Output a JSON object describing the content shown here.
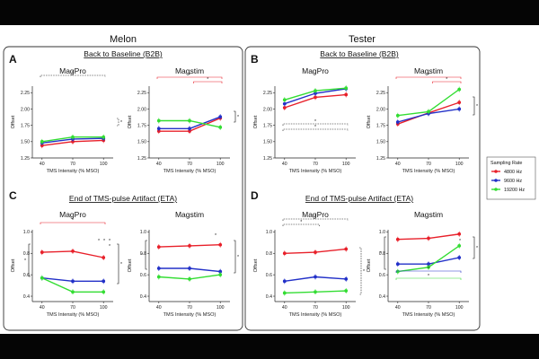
{
  "group_titles": {
    "left": "Melon",
    "right": "Tester"
  },
  "panel_letters": {
    "A": "A",
    "B": "B",
    "C": "C",
    "D": "D"
  },
  "section_titles": {
    "A": "Back to Baseline (B2B)",
    "B": "Back to Baseline (B2B)",
    "C": "End of TMS-pulse Artifact (ETA)",
    "D": "End of TMS-pulse Artifact (ETA)"
  },
  "legend": {
    "title": "Sampling Rate",
    "items": [
      {
        "label": "4800 Hz",
        "color": "#e8202a"
      },
      {
        "label": "9600 Hz",
        "color": "#2230c8"
      },
      {
        "label": "19200 Hz",
        "color": "#33dd33"
      }
    ]
  },
  "chart_data": [
    {
      "id": "A-MagPro",
      "type": "line",
      "title": "MagPro",
      "xlabel": "TMS Intensity (% MSO)",
      "ylabel": "Offset",
      "x": [
        40,
        70,
        100
      ],
      "xticks": [
        "40",
        "70",
        "100"
      ],
      "ylim": [
        1.25,
        2.35
      ],
      "yticks": [
        "1.25",
        "1.50",
        "1.75",
        "2.00",
        "2.25"
      ],
      "series": [
        {
          "name": "4800 Hz",
          "color": "#e8202a",
          "values": [
            1.44,
            1.5,
            1.52
          ]
        },
        {
          "name": "9600 Hz",
          "color": "#2230c8",
          "values": [
            1.48,
            1.54,
            1.55
          ]
        },
        {
          "name": "19200 Hz",
          "color": "#33dd33",
          "values": [
            1.5,
            1.57,
            1.57
          ]
        }
      ],
      "significance": [
        "*",
        "*"
      ]
    },
    {
      "id": "A-Magstim",
      "type": "line",
      "title": "Magstim",
      "xlabel": "TMS Intensity (% MSO)",
      "ylabel": "Offset",
      "x": [
        40,
        70,
        100
      ],
      "xticks": [
        "40",
        "70",
        "100"
      ],
      "ylim": [
        1.25,
        2.35
      ],
      "yticks": [
        "1.25",
        "1.50",
        "1.75",
        "2.00",
        "2.25"
      ],
      "series": [
        {
          "name": "4800 Hz",
          "color": "#e8202a",
          "values": [
            1.66,
            1.66,
            1.86
          ]
        },
        {
          "name": "9600 Hz",
          "color": "#2230c8",
          "values": [
            1.7,
            1.7,
            1.88
          ]
        },
        {
          "name": "19200 Hz",
          "color": "#33dd33",
          "values": [
            1.82,
            1.82,
            1.72
          ]
        }
      ],
      "significance": [
        "*",
        "*",
        "*"
      ]
    },
    {
      "id": "B-MagPro",
      "type": "line",
      "title": "MagPro",
      "xlabel": "TMS Intensity (% MSO)",
      "ylabel": "Offset",
      "x": [
        40,
        70,
        100
      ],
      "xticks": [
        "40",
        "70",
        "100"
      ],
      "ylim": [
        1.25,
        2.35
      ],
      "yticks": [
        "1.25",
        "1.50",
        "1.75",
        "2.00",
        "2.25"
      ],
      "series": [
        {
          "name": "4800 Hz",
          "color": "#e8202a",
          "values": [
            2.02,
            2.18,
            2.22
          ]
        },
        {
          "name": "9600 Hz",
          "color": "#2230c8",
          "values": [
            2.08,
            2.24,
            2.31
          ]
        },
        {
          "name": "19200 Hz",
          "color": "#33dd33",
          "values": [
            2.14,
            2.28,
            2.32
          ]
        }
      ],
      "significance": [
        "*",
        "*"
      ]
    },
    {
      "id": "B-Magstim",
      "type": "line",
      "title": "Magstim",
      "xlabel": "TMS Intensity (% MSO)",
      "ylabel": "Offset",
      "x": [
        40,
        70,
        100
      ],
      "xticks": [
        "40",
        "70",
        "100"
      ],
      "ylim": [
        1.25,
        2.35
      ],
      "yticks": [
        "1.25",
        "1.50",
        "1.75",
        "2.00",
        "2.25"
      ],
      "series": [
        {
          "name": "4800 Hz",
          "color": "#e8202a",
          "values": [
            1.77,
            1.94,
            2.1
          ]
        },
        {
          "name": "9600 Hz",
          "color": "#2230c8",
          "values": [
            1.8,
            1.93,
            2.0
          ]
        },
        {
          "name": "19200 Hz",
          "color": "#33dd33",
          "values": [
            1.9,
            1.96,
            2.3
          ]
        }
      ],
      "significance": [
        "*",
        "*",
        "*"
      ]
    },
    {
      "id": "C-MagPro",
      "type": "line",
      "title": "MagPro",
      "xlabel": "TMS Intensity (% MSO)",
      "ylabel": "Offset",
      "x": [
        40,
        70,
        100
      ],
      "xticks": [
        "40",
        "70",
        "100"
      ],
      "ylim": [
        0.35,
        1.02
      ],
      "yticks": [
        "0.4",
        "0.6",
        "0.8",
        "1.0"
      ],
      "series": [
        {
          "name": "4800 Hz",
          "color": "#e8202a",
          "values": [
            0.81,
            0.82,
            0.76
          ]
        },
        {
          "name": "9600 Hz",
          "color": "#2230c8",
          "values": [
            0.57,
            0.54,
            0.54
          ]
        },
        {
          "name": "19200 Hz",
          "color": "#33dd33",
          "values": [
            0.57,
            0.44,
            0.44
          ]
        }
      ],
      "significance": [
        "*",
        "*",
        "*",
        "*",
        "*",
        "*",
        "*"
      ]
    },
    {
      "id": "C-Magstim",
      "type": "line",
      "title": "Magstim",
      "xlabel": "TMS Intensity (% MSO)",
      "ylabel": "Offset",
      "x": [
        40,
        70,
        100
      ],
      "xticks": [
        "40",
        "70",
        "100"
      ],
      "ylim": [
        0.35,
        1.02
      ],
      "yticks": [
        "0.4",
        "0.6",
        "0.8",
        "1.0"
      ],
      "series": [
        {
          "name": "4800 Hz",
          "color": "#e8202a",
          "values": [
            0.86,
            0.87,
            0.88
          ]
        },
        {
          "name": "9600 Hz",
          "color": "#2230c8",
          "values": [
            0.66,
            0.66,
            0.63
          ]
        },
        {
          "name": "19200 Hz",
          "color": "#33dd33",
          "values": [
            0.58,
            0.56,
            0.6
          ]
        }
      ],
      "significance": [
        "*",
        "*",
        "*"
      ]
    },
    {
      "id": "D-MagPro",
      "type": "line",
      "title": "MagPro",
      "xlabel": "TMS Intensity (% MSO)",
      "ylabel": "Offset",
      "x": [
        40,
        70,
        100
      ],
      "xticks": [
        "40",
        "70",
        "100"
      ],
      "ylim": [
        0.35,
        1.02
      ],
      "yticks": [
        "0.4",
        "0.6",
        "0.8",
        "1.0"
      ],
      "series": [
        {
          "name": "4800 Hz",
          "color": "#e8202a",
          "values": [
            0.8,
            0.81,
            0.84
          ]
        },
        {
          "name": "9600 Hz",
          "color": "#2230c8",
          "values": [
            0.54,
            0.58,
            0.56
          ]
        },
        {
          "name": "19200 Hz",
          "color": "#33dd33",
          "values": [
            0.43,
            0.44,
            0.45
          ]
        }
      ],
      "significance": [
        "*",
        "*",
        "*"
      ]
    },
    {
      "id": "D-Magstim",
      "type": "line",
      "title": "Magstim",
      "xlabel": "TMS Intensity (% MSO)",
      "ylabel": "Offset",
      "x": [
        40,
        70,
        100
      ],
      "xticks": [
        "40",
        "70",
        "100"
      ],
      "ylim": [
        0.35,
        1.02
      ],
      "yticks": [
        "0.4",
        "0.6",
        "0.8",
        "1.0"
      ],
      "series": [
        {
          "name": "4800 Hz",
          "color": "#e8202a",
          "values": [
            0.93,
            0.94,
            0.98
          ]
        },
        {
          "name": "9600 Hz",
          "color": "#2230c8",
          "values": [
            0.7,
            0.7,
            0.76
          ]
        },
        {
          "name": "19200 Hz",
          "color": "#33dd33",
          "values": [
            0.63,
            0.67,
            0.87
          ]
        }
      ],
      "significance": [
        "*",
        "*",
        "*",
        "*",
        "*"
      ]
    }
  ]
}
